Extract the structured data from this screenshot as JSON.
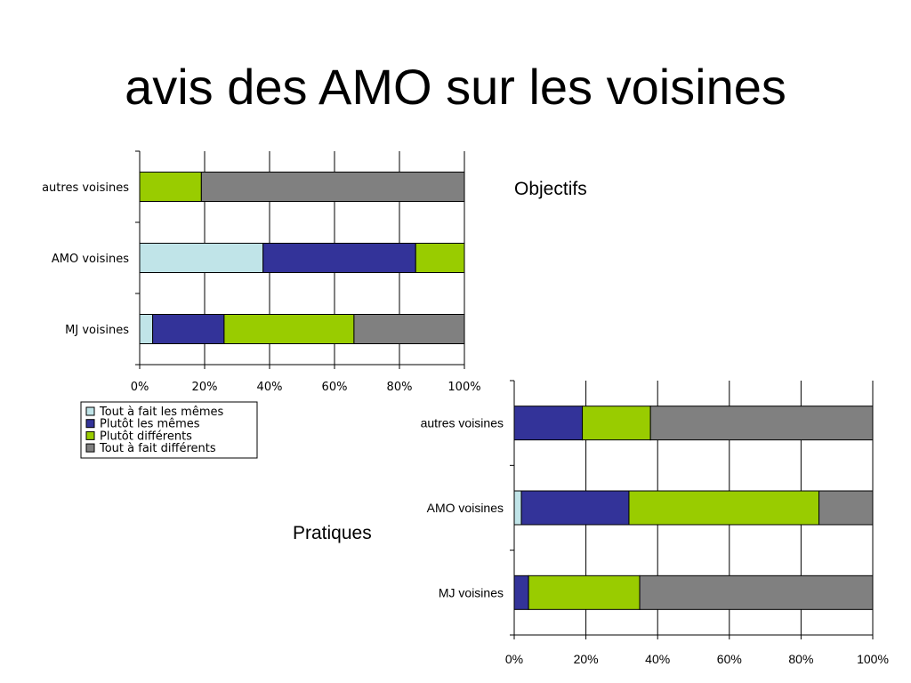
{
  "title": "avis des AMO sur les voisines",
  "colors": [
    "#c0e4e8",
    "#333399",
    "#99cc00",
    "#808080"
  ],
  "legend": [
    "Tout à fait les mêmes",
    "Plutôt les mêmes",
    "Plutôt différents",
    "Tout à fait différents"
  ],
  "chart_data": [
    {
      "type": "bar",
      "orientation": "horizontal",
      "stacked": "percent",
      "caption": "Objectifs",
      "categories": [
        "autres voisines",
        "AMO voisines",
        "MJ voisines"
      ],
      "series": [
        {
          "name": "Tout à fait les mêmes",
          "values": [
            0,
            38,
            4
          ]
        },
        {
          "name": "Plutôt les mêmes",
          "values": [
            0,
            47,
            22
          ]
        },
        {
          "name": "Plutôt différents",
          "values": [
            19,
            15,
            40
          ]
        },
        {
          "name": "Tout à fait différents",
          "values": [
            81,
            0,
            34
          ]
        }
      ],
      "xticks": [
        "0%",
        "20%",
        "40%",
        "60%",
        "80%",
        "100%"
      ],
      "xlim": [
        0,
        100
      ],
      "grid": true,
      "legend_position": "bottom-left"
    },
    {
      "type": "bar",
      "orientation": "horizontal",
      "stacked": "percent",
      "caption": "Pratiques",
      "categories": [
        "autres voisines",
        "AMO voisines",
        "MJ voisines"
      ],
      "series": [
        {
          "name": "Tout à fait les mêmes",
          "values": [
            0,
            2,
            0
          ]
        },
        {
          "name": "Plutôt les mêmes",
          "values": [
            19,
            30,
            4
          ]
        },
        {
          "name": "Plutôt différents",
          "values": [
            19,
            53,
            31
          ]
        },
        {
          "name": "Tout à fait différents",
          "values": [
            62,
            15,
            65
          ]
        }
      ],
      "xticks": [
        "0%",
        "20%",
        "40%",
        "60%",
        "80%",
        "100%"
      ],
      "xlim": [
        0,
        100
      ],
      "grid": true
    }
  ]
}
